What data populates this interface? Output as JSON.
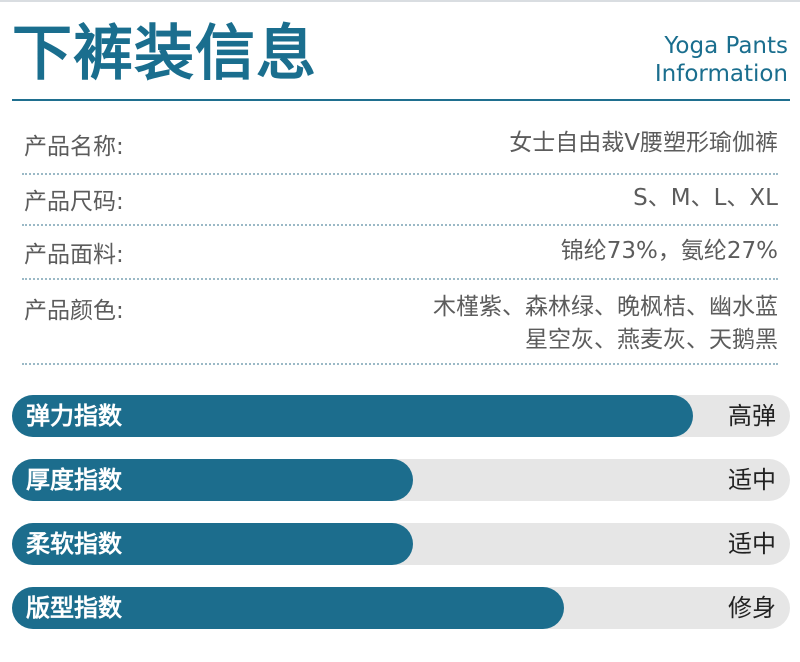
{
  "header": {
    "title_cn": "下裤装信息",
    "title_en_line1": "Yoga Pants",
    "title_en_line2": "Information"
  },
  "info": [
    {
      "label": "产品名称:",
      "value_lines": [
        "女士自由裁V腰塑形瑜伽裤"
      ]
    },
    {
      "label": "产品尺码:",
      "value_lines": [
        "S、M、L、XL"
      ]
    },
    {
      "label": "产品面料:",
      "value_lines": [
        "锦纶73%，氨纶27%"
      ]
    },
    {
      "label": "产品颜色:",
      "value_lines": [
        "木槿紫、森林绿、晚枫桔、幽水蓝",
        "星空灰、燕麦灰、天鹅黑"
      ]
    }
  ],
  "indices": [
    {
      "label": "弹力指数",
      "level": "高弹",
      "fill_fraction": 0.875
    },
    {
      "label": "厚度指数",
      "level": "适中",
      "fill_fraction": 0.515
    },
    {
      "label": "柔软指数",
      "level": "适中",
      "fill_fraction": 0.515
    },
    {
      "label": "版型指数",
      "level": "修身",
      "fill_fraction": 0.71
    }
  ],
  "colors": {
    "accent": "#1c6d8d",
    "track": "#e6e6e6",
    "text": "#5c5c5c"
  }
}
